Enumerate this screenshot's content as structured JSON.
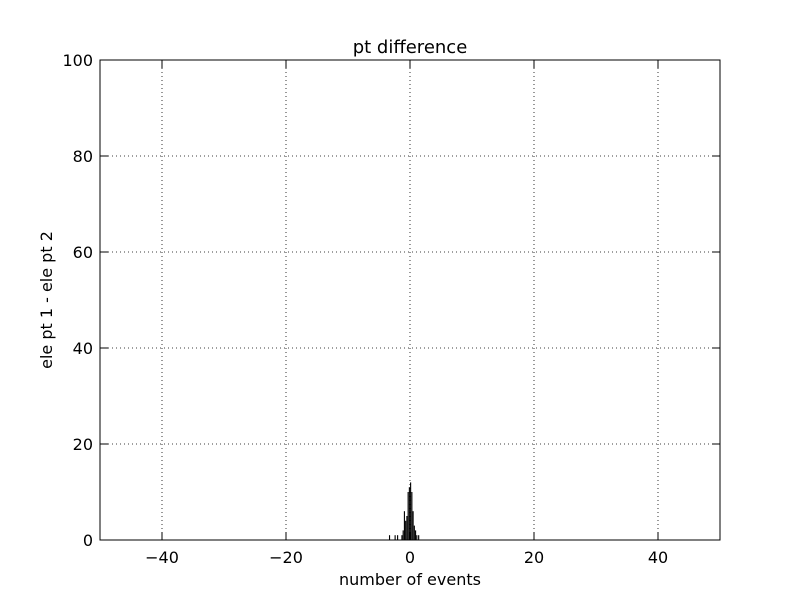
{
  "chart_data": {
    "type": "bar",
    "title": "pt difference",
    "xlabel": "number of events",
    "ylabel": "ele pt 1 - ele pt 2",
    "xlim": [
      -50,
      50
    ],
    "ylim": [
      0,
      100
    ],
    "xticks": [
      -40,
      -20,
      0,
      20,
      40
    ],
    "xtick_labels": [
      "−40",
      "−20",
      "0",
      "20",
      "40"
    ],
    "yticks": [
      0,
      20,
      40,
      60,
      80,
      100
    ],
    "ytick_labels": [
      "0",
      "20",
      "40",
      "60",
      "80",
      "100"
    ],
    "grid": true,
    "legend": "none",
    "bar_color": "#000000",
    "bins": [
      {
        "x": -3.3,
        "value": 1
      },
      {
        "x": -2.4,
        "value": 1
      },
      {
        "x": -2.0,
        "value": 1
      },
      {
        "x": -1.3,
        "value": 1
      },
      {
        "x": -1.1,
        "value": 2
      },
      {
        "x": -0.9,
        "value": 6
      },
      {
        "x": -0.7,
        "value": 4
      },
      {
        "x": -0.5,
        "value": 5
      },
      {
        "x": -0.3,
        "value": 10
      },
      {
        "x": -0.1,
        "value": 11
      },
      {
        "x": 0.1,
        "value": 12
      },
      {
        "x": 0.3,
        "value": 10
      },
      {
        "x": 0.5,
        "value": 6
      },
      {
        "x": 0.7,
        "value": 3
      },
      {
        "x": 0.9,
        "value": 2
      },
      {
        "x": 1.1,
        "value": 1
      },
      {
        "x": 1.4,
        "value": 1
      }
    ]
  }
}
